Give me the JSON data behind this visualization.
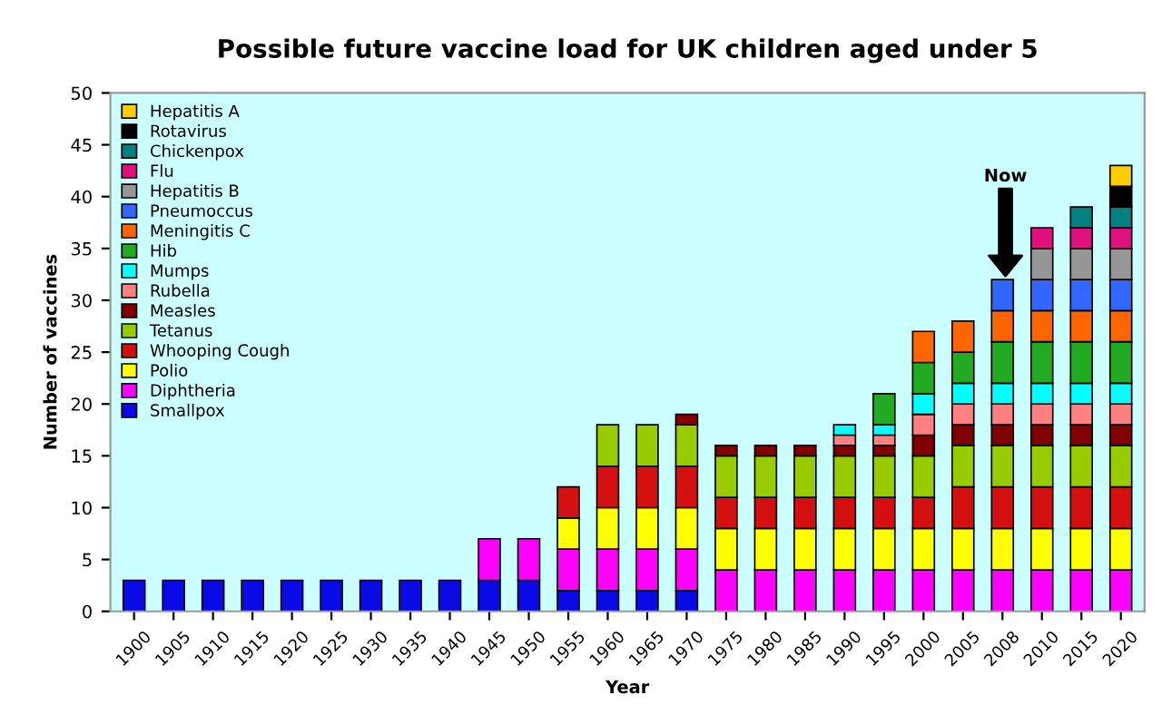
{
  "chart_data": {
    "type": "bar",
    "stacked": true,
    "title": "Possible future vaccine load for UK children aged under 5",
    "xlabel": "Year",
    "ylabel": "Number of vaccines",
    "categories": [
      "1900",
      "1905",
      "1910",
      "1915",
      "1920",
      "1925",
      "1930",
      "1935",
      "1940",
      "1945",
      "1950",
      "1955",
      "1960",
      "1965",
      "1970",
      "1975",
      "1980",
      "1985",
      "1990",
      "1995",
      "2000",
      "2005",
      "2008",
      "2010",
      "2015",
      "2020"
    ],
    "ylim": [
      0,
      50
    ],
    "yticks": [
      0,
      5,
      10,
      15,
      20,
      25,
      30,
      35,
      40,
      45,
      50
    ],
    "grid": false,
    "legend": "top left",
    "annotations": [
      "Now"
    ],
    "series": [
      {
        "name": "Smallpox",
        "color": "#0a0ae6",
        "values": [
          3,
          3,
          3,
          3,
          3,
          3,
          3,
          3,
          3,
          3,
          3,
          2,
          2,
          2,
          2,
          null,
          null,
          null,
          null,
          null,
          null,
          null,
          null,
          null,
          null,
          null
        ]
      },
      {
        "name": "Diphtheria",
        "color": "#ff00ff",
        "values": [
          null,
          null,
          null,
          null,
          null,
          null,
          null,
          null,
          null,
          4,
          4,
          4,
          4,
          4,
          4,
          4,
          4,
          4,
          4,
          4,
          4,
          4,
          4,
          4,
          4,
          4
        ]
      },
      {
        "name": "Polio",
        "color": "#ffff00",
        "values": [
          null,
          null,
          null,
          null,
          null,
          null,
          null,
          null,
          null,
          null,
          null,
          3,
          4,
          4,
          4,
          4,
          4,
          4,
          4,
          4,
          4,
          4,
          4,
          4,
          4,
          4
        ]
      },
      {
        "name": "Whooping Cough",
        "color": "#d41010",
        "values": [
          null,
          null,
          null,
          null,
          null,
          null,
          null,
          null,
          null,
          null,
          null,
          3,
          4,
          4,
          4,
          3,
          3,
          3,
          3,
          3,
          3,
          4,
          4,
          4,
          4,
          4
        ]
      },
      {
        "name": "Tetanus",
        "color": "#99cc00",
        "values": [
          null,
          null,
          null,
          null,
          null,
          null,
          null,
          null,
          null,
          null,
          null,
          null,
          4,
          4,
          4,
          4,
          4,
          4,
          4,
          4,
          4,
          4,
          4,
          4,
          4,
          4
        ]
      },
      {
        "name": "Measles",
        "color": "#800000",
        "values": [
          null,
          null,
          null,
          null,
          null,
          null,
          null,
          null,
          null,
          null,
          null,
          null,
          null,
          null,
          1,
          1,
          1,
          1,
          1,
          1,
          2,
          2,
          2,
          2,
          2,
          2
        ]
      },
      {
        "name": "Rubella",
        "color": "#ff8080",
        "values": [
          null,
          null,
          null,
          null,
          null,
          null,
          null,
          null,
          null,
          null,
          null,
          null,
          null,
          null,
          null,
          null,
          null,
          null,
          1,
          1,
          2,
          2,
          2,
          2,
          2,
          2
        ]
      },
      {
        "name": "Mumps",
        "color": "#00ffff",
        "values": [
          null,
          null,
          null,
          null,
          null,
          null,
          null,
          null,
          null,
          null,
          null,
          null,
          null,
          null,
          null,
          null,
          null,
          null,
          1,
          1,
          2,
          2,
          2,
          2,
          2,
          2
        ]
      },
      {
        "name": "Hib",
        "color": "#22aa22",
        "values": [
          null,
          null,
          null,
          null,
          null,
          null,
          null,
          null,
          null,
          null,
          null,
          null,
          null,
          null,
          null,
          null,
          null,
          null,
          null,
          3,
          3,
          3,
          4,
          4,
          4,
          4
        ]
      },
      {
        "name": "Meningitis C",
        "color": "#ff6600",
        "values": [
          null,
          null,
          null,
          null,
          null,
          null,
          null,
          null,
          null,
          null,
          null,
          null,
          null,
          null,
          null,
          null,
          null,
          null,
          null,
          null,
          3,
          3,
          3,
          3,
          3,
          3
        ]
      },
      {
        "name": "Pneumoccus",
        "color": "#3366ff",
        "values": [
          null,
          null,
          null,
          null,
          null,
          null,
          null,
          null,
          null,
          null,
          null,
          null,
          null,
          null,
          null,
          null,
          null,
          null,
          null,
          null,
          null,
          null,
          3,
          3,
          3,
          3
        ]
      },
      {
        "name": "Hepatitis B",
        "color": "#969696",
        "values": [
          null,
          null,
          null,
          null,
          null,
          null,
          null,
          null,
          null,
          null,
          null,
          null,
          null,
          null,
          null,
          null,
          null,
          null,
          null,
          null,
          null,
          null,
          null,
          3,
          3,
          3
        ]
      },
      {
        "name": "Flu",
        "color": "#e0107f",
        "values": [
          null,
          null,
          null,
          null,
          null,
          null,
          null,
          null,
          null,
          null,
          null,
          null,
          null,
          null,
          null,
          null,
          null,
          null,
          null,
          null,
          null,
          null,
          null,
          2,
          2,
          2
        ]
      },
      {
        "name": "Chickenpox",
        "color": "#008080",
        "values": [
          null,
          null,
          null,
          null,
          null,
          null,
          null,
          null,
          null,
          null,
          null,
          null,
          null,
          null,
          null,
          null,
          null,
          null,
          null,
          null,
          null,
          null,
          null,
          null,
          2,
          2
        ]
      },
      {
        "name": "Rotavirus",
        "color": "#000000",
        "values": [
          null,
          null,
          null,
          null,
          null,
          null,
          null,
          null,
          null,
          null,
          null,
          null,
          null,
          null,
          null,
          null,
          null,
          null,
          null,
          null,
          null,
          null,
          null,
          null,
          null,
          2
        ]
      },
      {
        "name": "Hepatitis A",
        "color": "#ffcc00",
        "values": [
          null,
          null,
          null,
          null,
          null,
          null,
          null,
          null,
          null,
          null,
          null,
          null,
          null,
          null,
          null,
          null,
          null,
          null,
          null,
          null,
          null,
          null,
          null,
          null,
          null,
          2
        ]
      }
    ]
  }
}
